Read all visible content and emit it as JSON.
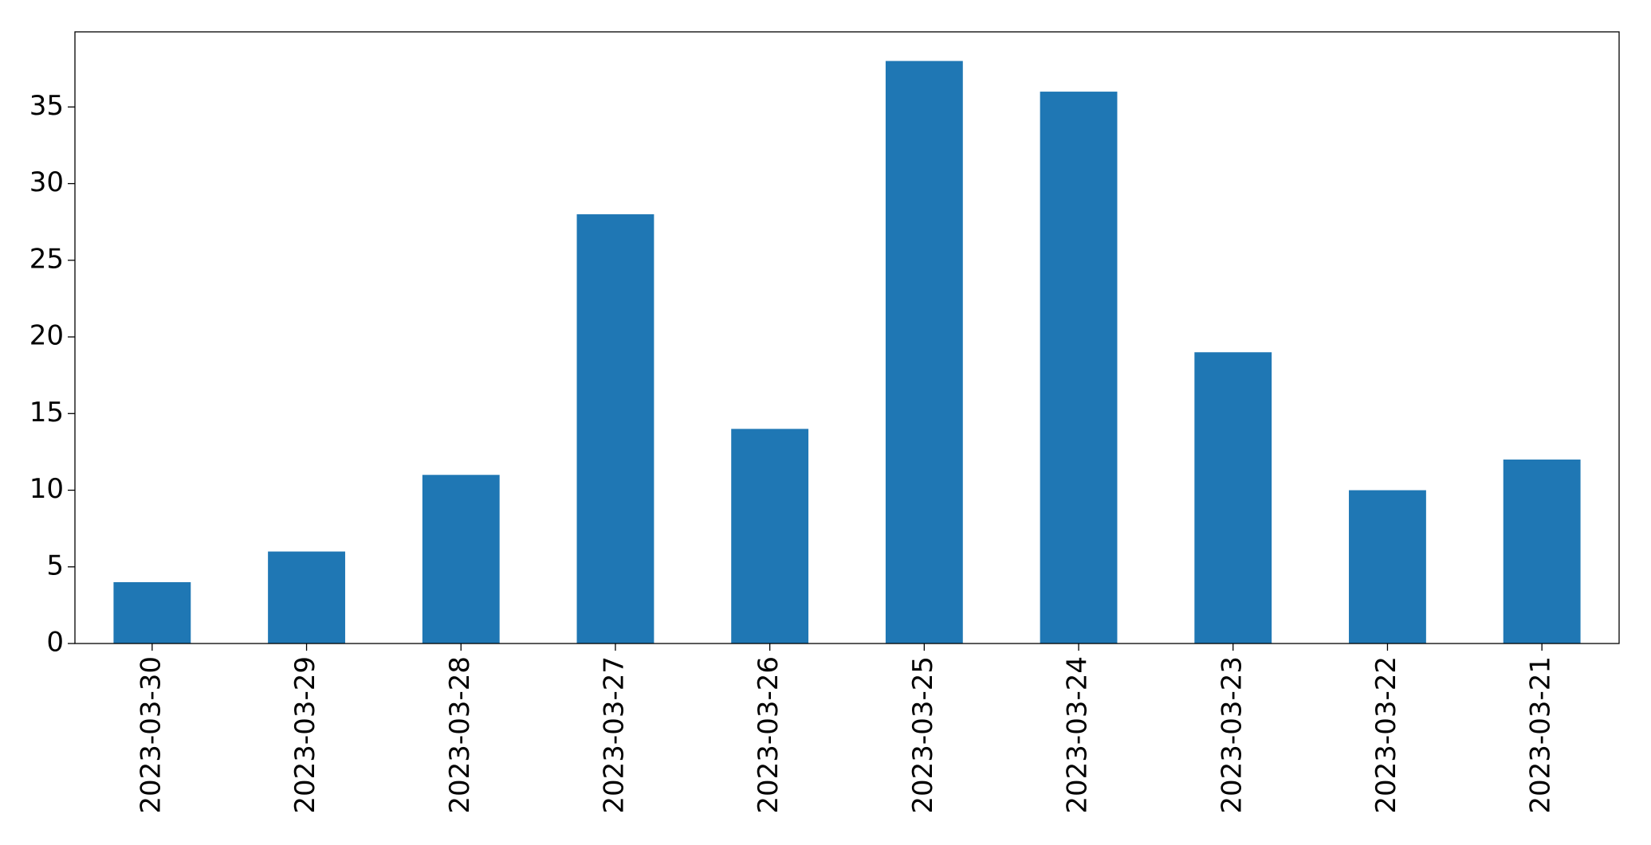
{
  "chart_data": {
    "type": "bar",
    "categories": [
      "2023-03-30",
      "2023-03-29",
      "2023-03-28",
      "2023-03-27",
      "2023-03-26",
      "2023-03-25",
      "2023-03-24",
      "2023-03-23",
      "2023-03-22",
      "2023-03-21"
    ],
    "values": [
      4,
      6,
      11,
      28,
      14,
      38,
      36,
      19,
      10,
      12
    ],
    "color": "#1f77b4",
    "ylim": [
      0,
      39.9
    ],
    "yticks": [
      0,
      5,
      10,
      15,
      20,
      25,
      30,
      35
    ],
    "grid": false
  }
}
